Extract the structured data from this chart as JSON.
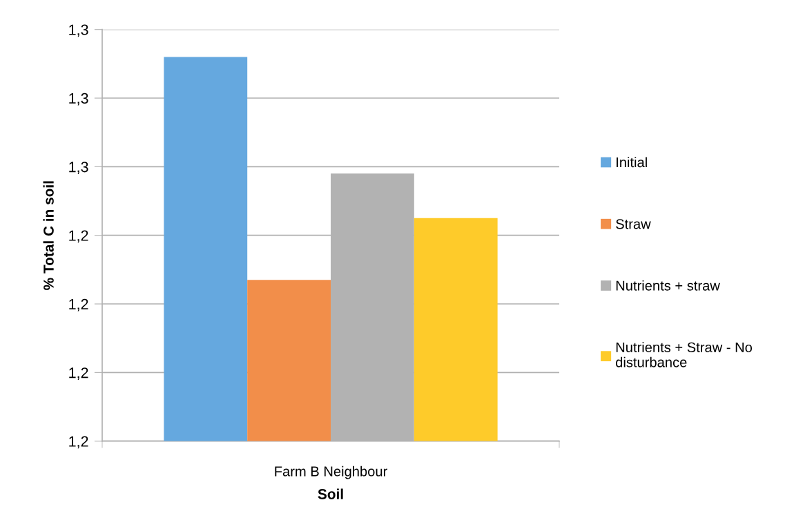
{
  "chart_data": {
    "type": "bar",
    "xlabel": "Soil",
    "ylabel": "% Total C in soil",
    "categories": [
      "Farm B Neighbour"
    ],
    "series": [
      {
        "name": "Initial",
        "color": "#65a8df",
        "values": [
          1.292
        ]
      },
      {
        "name": "Straw",
        "color": "#f28e4a",
        "values": [
          1.227
        ]
      },
      {
        "name": "Nutrients + straw",
        "color": "#b2b2b2",
        "values": [
          1.258
        ]
      },
      {
        "name": "Nutrients + Straw - No disturbance",
        "color": "#fecb2a",
        "values": [
          1.245
        ]
      }
    ],
    "ylim": [
      1.18,
      1.3
    ],
    "yticks": [
      {
        "value": 1.18,
        "label": "1,2"
      },
      {
        "value": 1.2,
        "label": "1,2"
      },
      {
        "value": 1.22,
        "label": "1,2"
      },
      {
        "value": 1.24,
        "label": "1,2"
      },
      {
        "value": 1.26,
        "label": "1,3"
      },
      {
        "value": 1.28,
        "label": "1,3"
      },
      {
        "value": 1.3,
        "label": "1,3"
      }
    ],
    "grid": "y",
    "legend": "right"
  }
}
